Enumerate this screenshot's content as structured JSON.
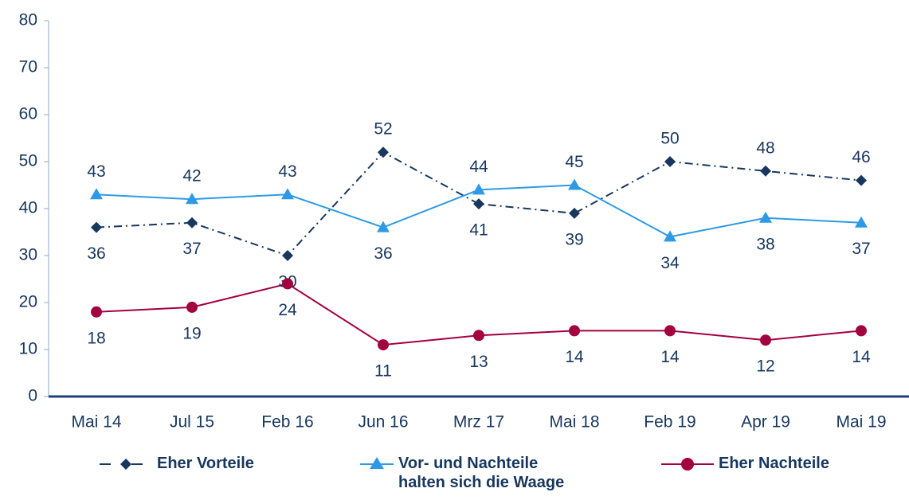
{
  "chart_data": {
    "type": "line",
    "categories": [
      "Mai 14",
      "Jul 15",
      "Feb 16",
      "Jun 16",
      "Mrz 17",
      "Mai 18",
      "Feb 19",
      "Apr 19",
      "Mai 19"
    ],
    "series": [
      {
        "name": "Eher Vorteile",
        "color": "#17375e",
        "marker": "diamond",
        "dash": "dash-dot",
        "values": [
          36,
          37,
          30,
          52,
          41,
          39,
          50,
          48,
          46
        ]
      },
      {
        "name": "Vor- und Nachteile halten sich die Waage",
        "color": "#2e9ae6",
        "marker": "triangle",
        "dash": "solid",
        "values": [
          43,
          42,
          43,
          36,
          44,
          45,
          34,
          38,
          37
        ]
      },
      {
        "name": "Eher Nachteile",
        "color": "#a3003f",
        "marker": "circle",
        "dash": "solid",
        "values": [
          18,
          19,
          24,
          11,
          13,
          14,
          14,
          12,
          14
        ]
      }
    ],
    "ylim": [
      0,
      80
    ],
    "yticks": [
      0,
      10,
      20,
      30,
      40,
      50,
      60,
      70,
      80
    ],
    "grid": false,
    "legend": "bottom"
  }
}
